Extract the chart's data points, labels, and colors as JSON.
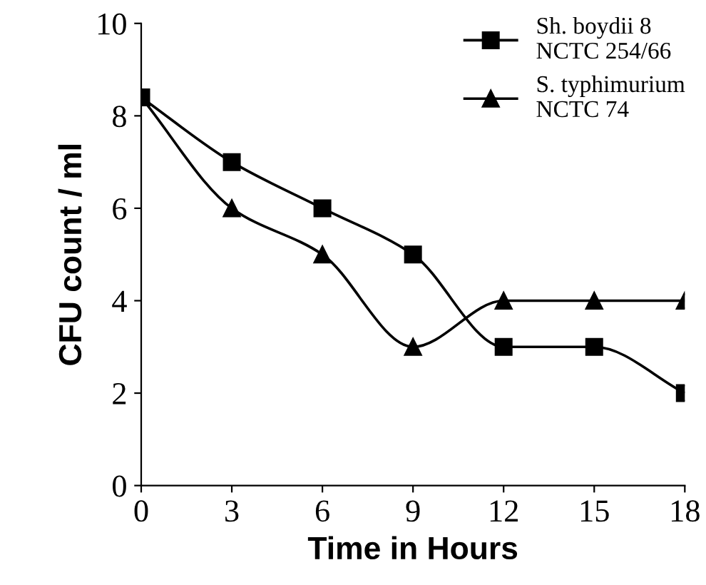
{
  "chart_data": {
    "type": "line",
    "xlabel": "Time in Hours",
    "ylabel": "CFU count / ml",
    "x": [
      0,
      3,
      6,
      9,
      12,
      15,
      18
    ],
    "series": [
      {
        "name": "Sh. boydii 8\nNCTC 254/66",
        "color": "#000000",
        "marker": "square",
        "values": [
          8.4,
          7,
          6,
          5,
          3,
          3,
          2
        ]
      },
      {
        "name": "S. typhimurium\nNCTC 74",
        "color": "#000000",
        "marker": "triangle",
        "values": [
          8.4,
          6,
          5,
          3,
          4,
          4,
          4
        ]
      }
    ],
    "xlim": [
      0,
      18
    ],
    "xticks": [
      0,
      3,
      6,
      9,
      12,
      15,
      18
    ],
    "ylim": [
      0,
      10
    ],
    "yticks": [
      0,
      2,
      4,
      6,
      8,
      10
    ],
    "grid": false,
    "legend": "top right",
    "line_style": "solid"
  }
}
